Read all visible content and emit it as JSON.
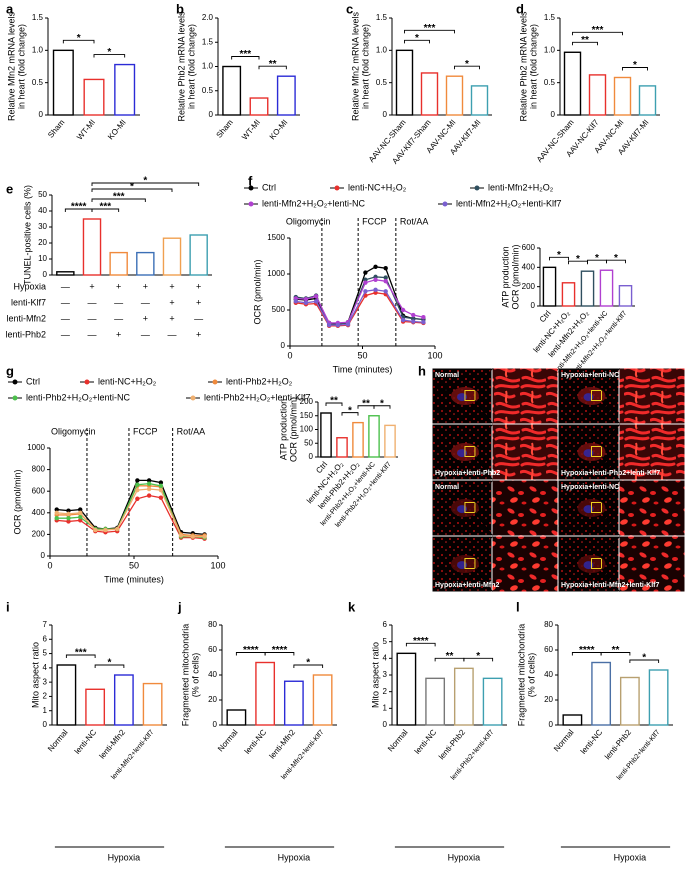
{
  "chart_data": [
    {
      "type": "bar",
      "panel": "a",
      "ylabel": [
        "Relative Mfn2 mRNA levels",
        "in heart (fold change)"
      ],
      "categories": [
        "Sham",
        "WT-MI",
        "KO-MI"
      ],
      "values": [
        1.0,
        0.55,
        0.78
      ],
      "colors": [
        "#000000",
        "#e8302c",
        "#2b2bd6"
      ],
      "ylim": [
        0,
        1.5
      ],
      "yticks": [
        0,
        0.5,
        {
          "value": 1,
          "label": "1.0"
        },
        1.5
      ],
      "annotations": [
        {
          "text": "*",
          "between": [
            0,
            1
          ]
        },
        {
          "text": "*",
          "between": [
            1,
            2
          ]
        }
      ]
    },
    {
      "type": "bar",
      "panel": "b",
      "ylabel": [
        "Relative Phb2 mRNA levels",
        "in heart (fold change)"
      ],
      "categories": [
        "Sham",
        "WT-MI",
        "KO-MI"
      ],
      "values": [
        1.0,
        0.35,
        0.8
      ],
      "colors": [
        "#000000",
        "#e8302c",
        "#2b2bd6"
      ],
      "ylim": [
        0,
        2
      ],
      "yticks": [
        0,
        0.5,
        {
          "value": 1,
          "label": "1.0"
        },
        1.5,
        {
          "value": 2,
          "label": "2.0"
        }
      ],
      "annotations": [
        {
          "text": "***",
          "between": [
            0,
            1
          ]
        },
        {
          "text": "**",
          "between": [
            1,
            2
          ]
        }
      ]
    },
    {
      "type": "bar",
      "panel": "c",
      "ylabel": [
        "Relative Mfn2 mRNA levels",
        "in heart (fold change)"
      ],
      "categories": [
        "AAV-NC-Sham",
        "AAV-Klf7-Sham",
        "AAV-NC-MI",
        "AAV-Klf7-MI"
      ],
      "values": [
        1.0,
        0.65,
        0.6,
        0.45
      ],
      "colors": [
        "#000000",
        "#e8302c",
        "#f08a3c",
        "#3d9fb0"
      ],
      "ylim": [
        0,
        1.5
      ],
      "yticks": [
        0,
        0.5,
        {
          "value": 1,
          "label": "1.0"
        },
        1.5
      ],
      "annotations": [
        {
          "text": "***",
          "between": [
            0,
            2
          ]
        },
        {
          "text": "*",
          "between": [
            0,
            1
          ]
        },
        {
          "text": "*",
          "between": [
            2,
            3
          ]
        }
      ]
    },
    {
      "type": "bar",
      "panel": "d",
      "ylabel": [
        "Relative Phb2 mRNA levels",
        "in heart (fold change)"
      ],
      "categories": [
        "AAV-NC-Sham",
        "AAV-NC-Klf7",
        "AAV-NC-MI",
        "AAV-Klf7-MI"
      ],
      "values": [
        0.97,
        0.62,
        0.58,
        0.45
      ],
      "colors": [
        "#000000",
        "#e8302c",
        "#f08a3c",
        "#3d9fb0"
      ],
      "ylim": [
        0,
        1.5
      ],
      "yticks": [
        0,
        0.5,
        {
          "value": 1,
          "label": "1.0"
        },
        1.5
      ],
      "annotations": [
        {
          "text": "***",
          "between": [
            0,
            2
          ]
        },
        {
          "text": "**",
          "between": [
            0,
            1
          ]
        },
        {
          "text": "*",
          "between": [
            2,
            3
          ]
        }
      ]
    },
    {
      "type": "bar",
      "panel": "e",
      "ylabel": [
        "TUNEL-positive cells (%)"
      ],
      "values": [
        2,
        35,
        14,
        14,
        23,
        25
      ],
      "colors": [
        "#000000",
        "#e8302c",
        "#f08a3c",
        "#3b6fb6",
        "#f0a050",
        "#3d9fb0"
      ],
      "ylim": [
        0,
        50
      ],
      "yticks": [
        0,
        10,
        20,
        30,
        40,
        50
      ],
      "annotations": [
        {
          "text": "****",
          "between": [
            0,
            1
          ]
        },
        {
          "text": "***",
          "between": [
            1,
            2
          ]
        },
        {
          "text": "***",
          "between": [
            1,
            3
          ]
        },
        {
          "text": "*",
          "between": [
            1,
            4
          ]
        },
        {
          "text": "*",
          "between": [
            1,
            5
          ]
        }
      ],
      "conditions": [
        {
          "label": "Hypoxia",
          "marks": [
            "—",
            "+",
            "+",
            "+",
            "+",
            "+"
          ]
        },
        {
          "label": "lenti-Klf7",
          "marks": [
            "—",
            "—",
            "—",
            "—",
            "+",
            "+"
          ]
        },
        {
          "label": "lenti-Mfn2",
          "marks": [
            "—",
            "—",
            "—",
            "+",
            "+",
            "—"
          ]
        },
        {
          "label": "lenti-Phb2",
          "marks": [
            "—",
            "—",
            "+",
            "—",
            "—",
            "+"
          ]
        }
      ]
    },
    {
      "type": "line",
      "panel": "f",
      "ylabel": [
        "OCR (pmol/min)"
      ],
      "xlabel": "Time (minutes)",
      "x": [
        4,
        11,
        18,
        27,
        33,
        40,
        52,
        59,
        66,
        78,
        85,
        92
      ],
      "xlim": [
        0,
        100
      ],
      "xticks": [
        0,
        50,
        100
      ],
      "ylim": [
        0,
        1500
      ],
      "yticks": [
        0,
        500,
        1000,
        1500
      ],
      "markers": [
        {
          "x": 22,
          "text": "Oligomycin"
        },
        {
          "x": 47,
          "text": "FCCP"
        },
        {
          "x": 73,
          "text": "Rot/AA"
        }
      ],
      "series": [
        {
          "name": "Ctrl",
          "color": "#000000",
          "values": [
            650,
            640,
            660,
            320,
            310,
            330,
            1020,
            1100,
            1080,
            420,
            380,
            370
          ]
        },
        {
          "name": "lenti-NC+H₂O₂",
          "color": "#e8302c",
          "values": [
            600,
            580,
            590,
            280,
            280,
            290,
            700,
            740,
            720,
            340,
            330,
            320
          ]
        },
        {
          "name": "lenti-Mfn2+H₂O₂",
          "color": "#2f4f5f",
          "values": [
            680,
            660,
            700,
            300,
            300,
            320,
            920,
            960,
            950,
            400,
            380,
            370
          ]
        },
        {
          "name": "lenti-Mfn2+H₂O₂+lenti-NC",
          "color": "#b040d0",
          "values": [
            660,
            650,
            690,
            320,
            320,
            330,
            880,
            920,
            900,
            500,
            430,
            400
          ]
        },
        {
          "name": "lenti-Mfn2+H₂O₂+lenti-Klf7",
          "color": "#7a5fd0",
          "values": [
            620,
            600,
            620,
            290,
            290,
            300,
            760,
            780,
            760,
            360,
            340,
            330
          ]
        }
      ]
    },
    {
      "type": "bar",
      "ylabel": [
        "ATP production",
        "OCR (pmol/min)"
      ],
      "categories": [
        "Ctrl",
        "lenti-NC+H₂O₂",
        "lenti-Mfn2+H₂O₂",
        "lenti-Mfn2+H₂O₂+lenti-NC",
        "lenti-Mfn2+H₂O₂+lenti-Klf7"
      ],
      "values": [
        400,
        240,
        360,
        370,
        210
      ],
      "colors": [
        "#000000",
        "#e8302c",
        "#2f4f5f",
        "#b040d0",
        "#7a5fd0"
      ],
      "ylim": [
        0,
        600
      ],
      "yticks": [
        0,
        200,
        400,
        600
      ],
      "annotations": [
        {
          "text": "*",
          "between": [
            0,
            1
          ]
        },
        {
          "text": "*",
          "between": [
            1,
            2
          ]
        },
        {
          "text": "*",
          "between": [
            2,
            3
          ]
        },
        {
          "text": "*",
          "between": [
            3,
            4
          ]
        }
      ]
    },
    {
      "type": "line",
      "panel": "g",
      "ylabel": [
        "OCR (pmol/min)"
      ],
      "xlabel": "Time (minutes)",
      "x": [
        4,
        11,
        18,
        27,
        33,
        40,
        52,
        59,
        66,
        78,
        85,
        92
      ],
      "xlim": [
        0,
        100
      ],
      "xticks": [
        0,
        50,
        100
      ],
      "ylim": [
        0,
        1000
      ],
      "yticks": [
        0,
        200,
        400,
        600,
        800,
        1000
      ],
      "markers": [
        {
          "x": 22,
          "text": "Oligomycin"
        },
        {
          "x": 47,
          "text": "FCCP"
        },
        {
          "x": 73,
          "text": "Rot/AA"
        }
      ],
      "series": [
        {
          "name": "Ctrl",
          "color": "#000000",
          "values": [
            430,
            420,
            430,
            260,
            250,
            260,
            700,
            700,
            680,
            220,
            210,
            200
          ]
        },
        {
          "name": "lenti-NC+H₂O₂",
          "color": "#e8302c",
          "values": [
            330,
            320,
            330,
            230,
            220,
            230,
            530,
            560,
            540,
            170,
            170,
            160
          ]
        },
        {
          "name": "lenti-Phb2+H₂O₂",
          "color": "#f08a3c",
          "values": [
            380,
            380,
            390,
            250,
            250,
            250,
            650,
            650,
            640,
            200,
            190,
            190
          ]
        },
        {
          "name": "lenti-Phb2+H₂O₂+lenti-NC",
          "color": "#4cc04c",
          "values": [
            350,
            350,
            360,
            250,
            250,
            250,
            660,
            670,
            650,
            180,
            180,
            170
          ]
        },
        {
          "name": "lenti-Phb2+H₂O₂+lenti-Klf7",
          "color": "#f0b070",
          "values": [
            400,
            390,
            400,
            240,
            240,
            250,
            610,
            620,
            610,
            190,
            180,
            180
          ]
        }
      ]
    },
    {
      "type": "bar",
      "ylabel": [
        "ATP production",
        "OCR (pmol/min)"
      ],
      "categories": [
        "Ctrl",
        "lenti-NC+H₂O₂",
        "lenti-Phb2+H₂O₂",
        "lenti-Phb2+H₂O₂+lenti-NC",
        "lenti-Phb2+H₂O₂+lenti-Klf7"
      ],
      "values": [
        160,
        70,
        125,
        150,
        115
      ],
      "colors": [
        "#000000",
        "#e8302c",
        "#f08a3c",
        "#4cc04c",
        "#f0b070"
      ],
      "ylim": [
        0,
        200
      ],
      "yticks": [
        0,
        50,
        100,
        150,
        200
      ],
      "annotations": [
        {
          "text": "**",
          "between": [
            0,
            1
          ]
        },
        {
          "text": "*",
          "between": [
            1,
            2
          ]
        },
        {
          "text": "**",
          "between": [
            2,
            3
          ]
        },
        {
          "text": "*",
          "between": [
            3,
            4
          ]
        }
      ]
    },
    {
      "type": "image",
      "panel": "h",
      "labels": [
        "Normal",
        "Hypoxia+lenti-NC",
        "Hypoxia+lenti-Phb2",
        "Hypoxia+lenti-Phb2+lenti-Klf7",
        "Normal",
        "Hypoxia+lenti-NC",
        "Hypoxia+lenti-Mfn2",
        "Hypoxia+lenti-Mfn2+lenti-Klf7"
      ]
    },
    {
      "type": "bar",
      "panel": "i",
      "ylabel": [
        "Mito aspect ratio"
      ],
      "categories": [
        "Normal",
        "lenti-NC",
        "lenti-Mfn2",
        "lenti-Mfn2+lenti-Klf7"
      ],
      "values": [
        4.2,
        2.5,
        3.5,
        2.9
      ],
      "colors": [
        "#000000",
        "#e8302c",
        "#2b2bd6",
        "#f08a3c"
      ],
      "ylim": [
        0,
        7
      ],
      "yticks": [
        0,
        1,
        2,
        3,
        4,
        5,
        6,
        7
      ],
      "annotations": [
        {
          "text": "***",
          "between": [
            0,
            1
          ]
        },
        {
          "text": "*",
          "between": [
            1,
            2
          ]
        }
      ],
      "group": {
        "text": "Hypoxia",
        "from": 1,
        "to": 3
      }
    },
    {
      "type": "bar",
      "panel": "j",
      "ylabel": [
        "Fragmented mitochondria",
        "(% of cells)"
      ],
      "categories": [
        "Normal",
        "lenti-NC",
        "lenti-Mfn2",
        "lenti-Mfn2+lenti-Klf7"
      ],
      "values": [
        12,
        50,
        35,
        40
      ],
      "colors": [
        "#000000",
        "#e8302c",
        "#2b2bd6",
        "#f08a3c"
      ],
      "ylim": [
        0,
        80
      ],
      "yticks": [
        0,
        20,
        40,
        60,
        80
      ],
      "annotations": [
        {
          "text": "****",
          "between": [
            0,
            1
          ]
        },
        {
          "text": "****",
          "between": [
            1,
            2
          ]
        },
        {
          "text": "*",
          "between": [
            2,
            3
          ]
        }
      ],
      "group": {
        "text": "Hypoxia",
        "from": 1,
        "to": 3
      }
    },
    {
      "type": "bar",
      "panel": "k",
      "ylabel": [
        "Mito aspect ratio"
      ],
      "categories": [
        "Normal",
        "lenti-NC",
        "lenti-Phb2",
        "lenti-Phb2+lenti-Klf7"
      ],
      "values": [
        4.3,
        2.8,
        3.4,
        2.8
      ],
      "colors": [
        "#000000",
        "#777777",
        "#b8a070",
        "#3d9fb0"
      ],
      "ylim": [
        0,
        6
      ],
      "yticks": [
        0,
        1,
        2,
        3,
        4,
        5,
        6
      ],
      "annotations": [
        {
          "text": "****",
          "between": [
            0,
            1
          ]
        },
        {
          "text": "**",
          "between": [
            1,
            2
          ]
        },
        {
          "text": "*",
          "between": [
            2,
            3
          ]
        }
      ],
      "group": {
        "text": "Hypoxia",
        "from": 1,
        "to": 3
      }
    },
    {
      "type": "bar",
      "panel": "l",
      "ylabel": [
        "Fragmented mitochondria",
        "(% of cells)"
      ],
      "categories": [
        "Normal",
        "lenti-NC",
        "lenti-Phb2",
        "lenti-Phb2+lenti-Klf7"
      ],
      "values": [
        8,
        50,
        38,
        44
      ],
      "colors": [
        "#000000",
        "#4a6fa5",
        "#b8a070",
        "#3d9fb0"
      ],
      "ylim": [
        0,
        80
      ],
      "yticks": [
        0,
        20,
        40,
        60,
        80
      ],
      "annotations": [
        {
          "text": "****",
          "between": [
            0,
            1
          ]
        },
        {
          "text": "**",
          "between": [
            1,
            2
          ]
        },
        {
          "text": "*",
          "between": [
            2,
            3
          ]
        }
      ],
      "group": {
        "text": "Hypoxia",
        "from": 1,
        "to": 3
      }
    }
  ]
}
